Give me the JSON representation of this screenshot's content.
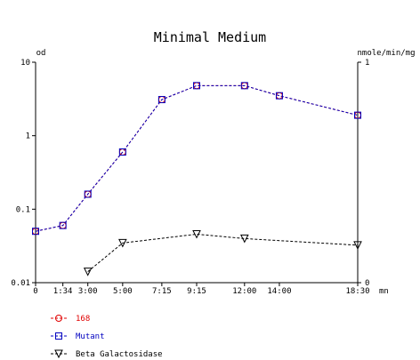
{
  "chart_data": {
    "type": "line",
    "title": "Minimal Medium",
    "ylabel_left": "od",
    "ylabel_right": "nmole/min/mg",
    "x_unit": "mn",
    "x_scale": "time (h:mm)",
    "y_left_scale": "log",
    "y_left_range": [
      0.01,
      10
    ],
    "y_left_ticks": [
      "10",
      "1",
      "0.1",
      "0.01"
    ],
    "y_right_range": [
      0,
      1
    ],
    "y_right_ticks": [
      "1",
      "0"
    ],
    "x_ticks": [
      "0",
      "1:34",
      "3:00",
      "5:00",
      "7:15",
      "9:15",
      "12:00",
      "14:00",
      "18:30"
    ],
    "series": [
      {
        "name": "168",
        "color": "#e00000",
        "marker": "circle",
        "axis": "left",
        "x": [
          "0:00",
          "1:34",
          "3:00",
          "5:00",
          "7:15",
          "9:15",
          "12:00",
          "14:00",
          "18:30"
        ],
        "y": [
          0.05,
          0.06,
          0.16,
          0.6,
          3.1,
          4.8,
          4.8,
          3.5,
          1.9
        ]
      },
      {
        "name": "Mutant",
        "color": "#0000c0",
        "marker": "square",
        "axis": "left",
        "x": [
          "0:00",
          "1:34",
          "3:00",
          "5:00",
          "7:15",
          "9:15",
          "12:00",
          "14:00",
          "18:30"
        ],
        "y": [
          0.05,
          0.06,
          0.16,
          0.6,
          3.1,
          4.8,
          4.8,
          3.5,
          1.9
        ]
      },
      {
        "name": "Beta Galactosidase",
        "color": "#000000",
        "marker": "triangle-down",
        "axis": "right",
        "x": [
          "3:00",
          "5:00",
          "9:15",
          "12:00",
          "18:30"
        ],
        "y": [
          0.05,
          0.18,
          0.22,
          0.2,
          0.17
        ]
      }
    ],
    "legend_placement": "bottom-left"
  }
}
